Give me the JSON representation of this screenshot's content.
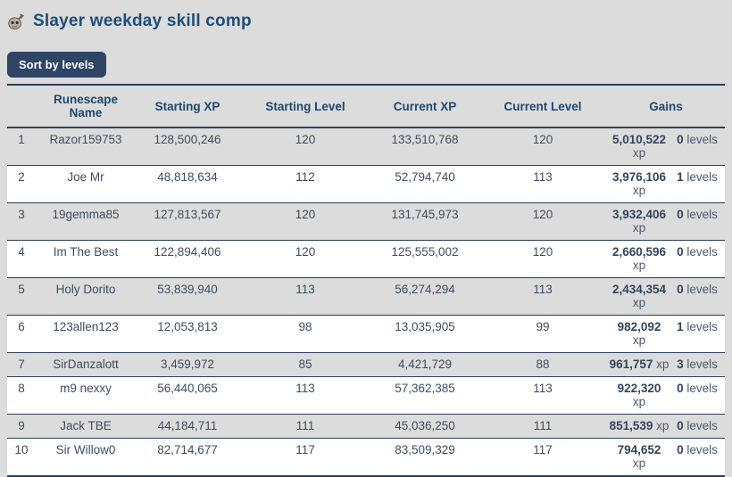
{
  "page": {
    "title": "Slayer weekday skill comp"
  },
  "toolbar": {
    "sort_button_label": "Sort by levels"
  },
  "table": {
    "columns": [
      "Runescape Name",
      "Starting XP",
      "Starting Level",
      "Current XP",
      "Current Level",
      "Gains"
    ],
    "rows": [
      {
        "rank": "1",
        "name": "Razor159753",
        "starting_xp": "128,500,246",
        "starting_level": "120",
        "current_xp": "133,510,768",
        "current_level": "120",
        "gains": {
          "xp": "5,010,522",
          "xp_unit": "xp",
          "xp_two_lines": true,
          "levels": "0",
          "levels_unit": "levels"
        }
      },
      {
        "rank": "2",
        "name": "Joe Mr",
        "starting_xp": "48,818,634",
        "starting_level": "112",
        "current_xp": "52,794,740",
        "current_level": "113",
        "gains": {
          "xp": "3,976,106",
          "xp_unit": "xp",
          "xp_two_lines": true,
          "levels": "1",
          "levels_unit": "levels"
        }
      },
      {
        "rank": "3",
        "name": "19gemma85",
        "starting_xp": "127,813,567",
        "starting_level": "120",
        "current_xp": "131,745,973",
        "current_level": "120",
        "gains": {
          "xp": "3,932,406",
          "xp_unit": "xp",
          "xp_two_lines": true,
          "levels": "0",
          "levels_unit": "levels"
        }
      },
      {
        "rank": "4",
        "name": "Im The Best",
        "starting_xp": "122,894,406",
        "starting_level": "120",
        "current_xp": "125,555,002",
        "current_level": "120",
        "gains": {
          "xp": "2,660,596",
          "xp_unit": "xp",
          "xp_two_lines": true,
          "levels": "0",
          "levels_unit": "levels"
        }
      },
      {
        "rank": "5",
        "name": "Holy Dorito",
        "starting_xp": "53,839,940",
        "starting_level": "113",
        "current_xp": "56,274,294",
        "current_level": "113",
        "gains": {
          "xp": "2,434,354",
          "xp_unit": "xp",
          "xp_two_lines": true,
          "levels": "0",
          "levels_unit": "levels"
        }
      },
      {
        "rank": "6",
        "name": "123allen123",
        "starting_xp": "12,053,813",
        "starting_level": "98",
        "current_xp": "13,035,905",
        "current_level": "99",
        "gains": {
          "xp": "982,092",
          "xp_unit": "xp",
          "xp_two_lines": true,
          "levels": "1",
          "levels_unit": "levels"
        }
      },
      {
        "rank": "7",
        "name": "SirDanzalott",
        "starting_xp": "3,459,972",
        "starting_level": "85",
        "current_xp": "4,421,729",
        "current_level": "88",
        "gains": {
          "xp": "961,757",
          "xp_unit": "xp",
          "xp_two_lines": false,
          "levels": "3",
          "levels_unit": "levels"
        }
      },
      {
        "rank": "8",
        "name": "m9 nexxy",
        "starting_xp": "56,440,065",
        "starting_level": "113",
        "current_xp": "57,362,385",
        "current_level": "113",
        "gains": {
          "xp": "922,320",
          "xp_unit": "xp",
          "xp_two_lines": true,
          "levels": "0",
          "levels_unit": "levels"
        }
      },
      {
        "rank": "9",
        "name": "Jack TBE",
        "starting_xp": "44,184,711",
        "starting_level": "111",
        "current_xp": "45,036,250",
        "current_level": "111",
        "gains": {
          "xp": "851,539",
          "xp_unit": "xp",
          "xp_two_lines": false,
          "levels": "0",
          "levels_unit": "levels"
        }
      },
      {
        "rank": "10",
        "name": "Sir Willow0",
        "starting_xp": "82,714,677",
        "starting_level": "117",
        "current_xp": "83,509,329",
        "current_level": "117",
        "gains": {
          "xp": "794,652",
          "xp_unit": "xp",
          "xp_two_lines": true,
          "levels": "0",
          "levels_unit": "levels"
        }
      }
    ]
  },
  "colors": {
    "bg": "#dcdcdc",
    "row-white": "#ffffff",
    "border": "#2d3f58",
    "title": "#1e4e79",
    "header-text": "#1d4872",
    "text": "#3d4d63",
    "value-bold": "#32455e",
    "unit-text": "#4c5b6e",
    "button-bg": "#2f4566",
    "button-text": "#ffffff"
  }
}
